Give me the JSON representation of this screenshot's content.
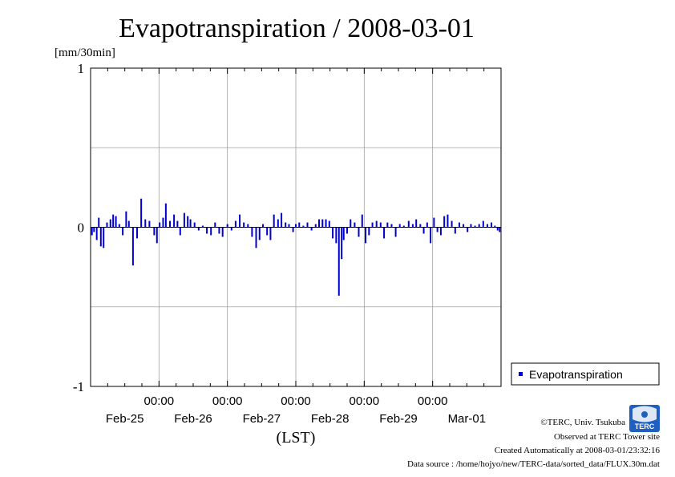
{
  "chart_data": {
    "type": "bar",
    "title": "Evapotranspiration / 2008-03-01",
    "ylabel": "[mm/30min]",
    "xlabel": "(LST)",
    "ylim": [
      -1,
      1
    ],
    "yticks": [
      "1",
      "0",
      "-1"
    ],
    "ytick_values": [
      1,
      0,
      -1
    ],
    "xlim": [
      0,
      6
    ],
    "x_unit": "days from 2008-02-25 00:00",
    "time_ticks": [
      "00:00",
      "00:00",
      "00:00",
      "00:00",
      "00:00"
    ],
    "date_ticks": [
      "Feb-25",
      "Feb-26",
      "Feb-27",
      "Feb-28",
      "Feb-29",
      "Mar-01"
    ],
    "grid": true,
    "legend": {
      "position": "right",
      "label": "Evapotranspiration"
    },
    "series": [
      {
        "name": "Evapotranspiration",
        "color": "#0000cc",
        "interval": "30min",
        "points": [
          [
            0.02,
            -0.05
          ],
          [
            0.05,
            -0.03
          ],
          [
            0.09,
            -0.08
          ],
          [
            0.12,
            0.06
          ],
          [
            0.15,
            -0.12
          ],
          [
            0.19,
            -0.13
          ],
          [
            0.24,
            0.03
          ],
          [
            0.29,
            0.05
          ],
          [
            0.33,
            0.08
          ],
          [
            0.37,
            0.07
          ],
          [
            0.42,
            0.02
          ],
          [
            0.47,
            -0.05
          ],
          [
            0.52,
            0.1
          ],
          [
            0.56,
            0.04
          ],
          [
            0.62,
            -0.24
          ],
          [
            0.68,
            -0.07
          ],
          [
            0.74,
            0.18
          ],
          [
            0.8,
            0.05
          ],
          [
            0.86,
            0.04
          ],
          [
            0.93,
            -0.05
          ],
          [
            0.97,
            -0.1
          ],
          [
            1.01,
            0.03
          ],
          [
            1.06,
            0.06
          ],
          [
            1.1,
            0.15
          ],
          [
            1.16,
            0.04
          ],
          [
            1.22,
            0.08
          ],
          [
            1.27,
            0.04
          ],
          [
            1.31,
            -0.05
          ],
          [
            1.37,
            0.09
          ],
          [
            1.42,
            0.07
          ],
          [
            1.46,
            0.05
          ],
          [
            1.52,
            0.03
          ],
          [
            1.58,
            -0.02
          ],
          [
            1.64,
            0.01
          ],
          [
            1.7,
            -0.04
          ],
          [
            1.76,
            -0.05
          ],
          [
            1.82,
            0.03
          ],
          [
            1.88,
            -0.04
          ],
          [
            1.93,
            -0.06
          ],
          [
            2.0,
            0.02
          ],
          [
            2.06,
            -0.02
          ],
          [
            2.12,
            0.04
          ],
          [
            2.18,
            0.08
          ],
          [
            2.24,
            0.03
          ],
          [
            2.3,
            0.02
          ],
          [
            2.36,
            -0.06
          ],
          [
            2.42,
            -0.13
          ],
          [
            2.47,
            -0.08
          ],
          [
            2.52,
            0.02
          ],
          [
            2.58,
            -0.05
          ],
          [
            2.63,
            -0.08
          ],
          [
            2.68,
            0.08
          ],
          [
            2.74,
            0.05
          ],
          [
            2.79,
            0.09
          ],
          [
            2.85,
            0.03
          ],
          [
            2.9,
            0.02
          ],
          [
            2.96,
            -0.03
          ],
          [
            3.0,
            0.02
          ],
          [
            3.05,
            0.03
          ],
          [
            3.11,
            0.01
          ],
          [
            3.17,
            0.03
          ],
          [
            3.23,
            -0.02
          ],
          [
            3.29,
            0.02
          ],
          [
            3.34,
            0.05
          ],
          [
            3.39,
            0.05
          ],
          [
            3.44,
            0.05
          ],
          [
            3.49,
            0.04
          ],
          [
            3.54,
            -0.07
          ],
          [
            3.59,
            -0.1
          ],
          [
            3.63,
            -0.43
          ],
          [
            3.67,
            -0.2
          ],
          [
            3.7,
            -0.08
          ],
          [
            3.75,
            -0.04
          ],
          [
            3.8,
            0.05
          ],
          [
            3.86,
            0.03
          ],
          [
            3.92,
            -0.06
          ],
          [
            3.97,
            0.08
          ],
          [
            4.02,
            -0.1
          ],
          [
            4.07,
            -0.05
          ],
          [
            4.12,
            0.03
          ],
          [
            4.18,
            0.04
          ],
          [
            4.24,
            0.03
          ],
          [
            4.29,
            -0.07
          ],
          [
            4.34,
            0.03
          ],
          [
            4.4,
            0.02
          ],
          [
            4.46,
            -0.06
          ],
          [
            4.52,
            0.02
          ],
          [
            4.58,
            0.01
          ],
          [
            4.65,
            0.04
          ],
          [
            4.71,
            0.02
          ],
          [
            4.76,
            0.05
          ],
          [
            4.82,
            0.02
          ],
          [
            4.87,
            -0.04
          ],
          [
            4.92,
            0.03
          ],
          [
            4.97,
            -0.1
          ],
          [
            5.02,
            0.06
          ],
          [
            5.07,
            -0.03
          ],
          [
            5.12,
            -0.05
          ],
          [
            5.17,
            0.07
          ],
          [
            5.22,
            0.08
          ],
          [
            5.28,
            0.04
          ],
          [
            5.33,
            -0.04
          ],
          [
            5.39,
            0.03
          ],
          [
            5.45,
            0.02
          ],
          [
            5.51,
            -0.03
          ],
          [
            5.56,
            0.02
          ],
          [
            5.62,
            0.01
          ],
          [
            5.68,
            0.02
          ],
          [
            5.74,
            0.04
          ],
          [
            5.8,
            0.02
          ],
          [
            5.86,
            0.03
          ],
          [
            5.91,
            0.01
          ],
          [
            5.95,
            -0.02
          ],
          [
            5.98,
            -0.03
          ]
        ]
      }
    ]
  },
  "footer": {
    "copyright": "©TERC, Univ. Tsukuba",
    "site": "Observed at TERC Tower site",
    "created": "Created Automatically at 2008-03-01/23:32:16",
    "source": "Data source : /home/hojyo/new/TERC-data/sorted_data/FLUX.30m.dat"
  },
  "logo": {
    "name": "terc-logo",
    "text": "TERC"
  }
}
